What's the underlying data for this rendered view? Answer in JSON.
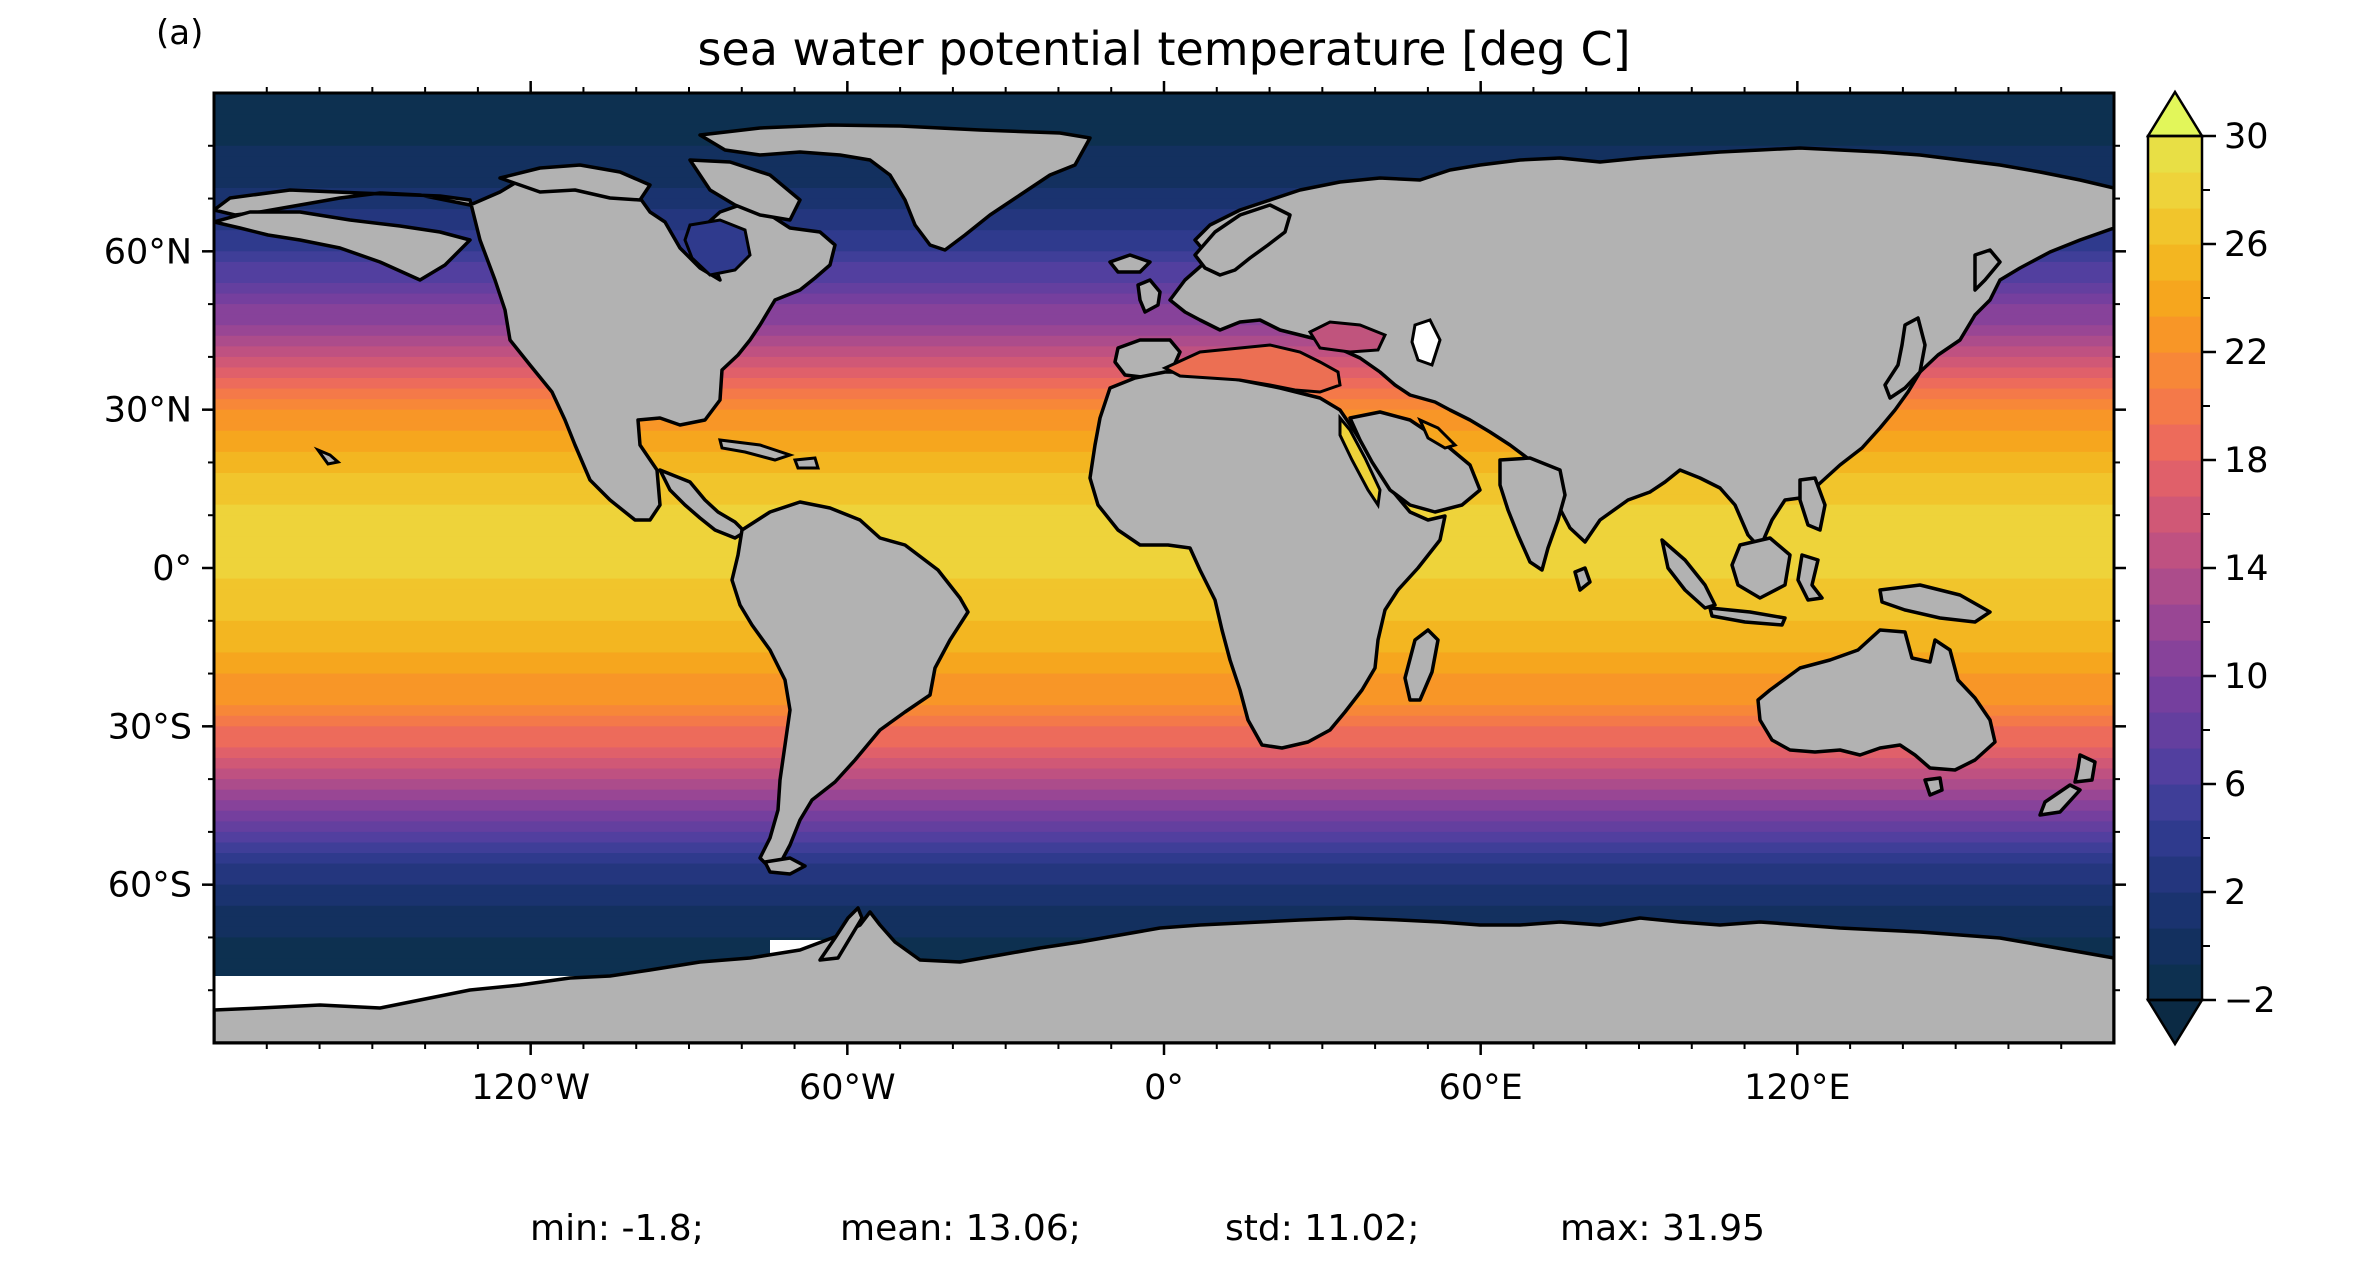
{
  "panel_label": "(a)",
  "title": "sea water potential temperature [deg C]",
  "latitude_ticks": [
    {
      "lat": 60,
      "label": "60°N"
    },
    {
      "lat": 30,
      "label": "30°N"
    },
    {
      "lat": 0,
      "label": "0°"
    },
    {
      "lat": -30,
      "label": "30°S"
    },
    {
      "lat": -60,
      "label": "60°S"
    }
  ],
  "longitude_ticks": [
    {
      "lon": -120,
      "label": "120°W"
    },
    {
      "lon": -60,
      "label": "60°W"
    },
    {
      "lon": 0,
      "label": "0°"
    },
    {
      "lon": 60,
      "label": "60°E"
    },
    {
      "lon": 120,
      "label": "120°E"
    }
  ],
  "colorbar": {
    "min": -2,
    "max": 30,
    "step": 2,
    "extend": "both",
    "tick_values": [
      30,
      26,
      22,
      18,
      14,
      10,
      6,
      2,
      -2
    ],
    "tick_labels": [
      "30",
      "26",
      "22",
      "18",
      "14",
      "10",
      "6",
      "2",
      "−2"
    ],
    "colors": [
      "#0d3050",
      "#13305f",
      "#1a336f",
      "#24367e",
      "#2f3a8d",
      "#3f3e98",
      "#523f9f",
      "#643f9f",
      "#753f9e",
      "#87429a",
      "#994694",
      "#ac4c8b",
      "#bf5181",
      "#d05876",
      "#e0606a",
      "#ed6b5b",
      "#f47949",
      "#f78738",
      "#f89627",
      "#f6a61e",
      "#f3b621",
      "#f1c52c",
      "#eed33a",
      "#e8df45"
    ],
    "under_color": "#0b2a44",
    "over_color": "#e2f65a"
  },
  "colors": {
    "land": "#b2b2b2",
    "land_ice": "#ffffff",
    "coastline": "#000000"
  },
  "stats": {
    "min": "min: -1.8;",
    "mean": "mean: 13.06;",
    "std": "std: 11.02;",
    "max": "max: 31.95"
  },
  "chart_data": {
    "type": "heatmap",
    "title": "sea water potential temperature [deg C]",
    "variable": "sea water potential temperature",
    "units": "deg C",
    "projection": "PlateCarree",
    "xlim": [
      -180,
      180
    ],
    "ylim": [
      -90,
      90
    ],
    "colorbar_range": [
      -2,
      30
    ],
    "zonal_mean_profile": [
      {
        "lat": -90,
        "value": -1.8
      },
      {
        "lat": -75,
        "value": -1.5
      },
      {
        "lat": -65,
        "value": 0
      },
      {
        "lat": -55,
        "value": 4
      },
      {
        "lat": -45,
        "value": 10
      },
      {
        "lat": -35,
        "value": 17
      },
      {
        "lat": -25,
        "value": 22
      },
      {
        "lat": -15,
        "value": 25
      },
      {
        "lat": -5,
        "value": 27
      },
      {
        "lat": 5,
        "value": 28
      },
      {
        "lat": 15,
        "value": 27
      },
      {
        "lat": 25,
        "value": 24
      },
      {
        "lat": 35,
        "value": 19
      },
      {
        "lat": 45,
        "value": 12
      },
      {
        "lat": 55,
        "value": 7
      },
      {
        "lat": 65,
        "value": 3
      },
      {
        "lat": 75,
        "value": 0
      },
      {
        "lat": 90,
        "value": -1.8
      }
    ],
    "stats": {
      "min": -1.8,
      "mean": 13.06,
      "std": 11.02,
      "max": 31.95
    }
  }
}
